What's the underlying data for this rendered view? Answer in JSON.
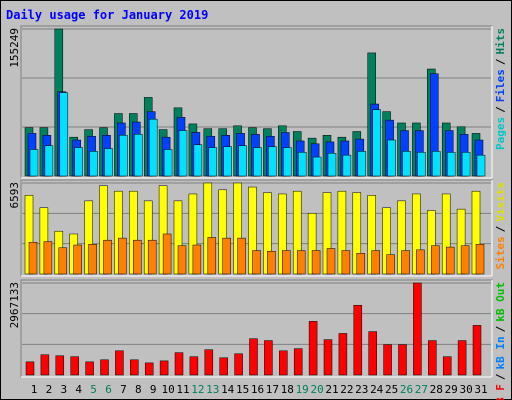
{
  "title": "Daily usage for January 2019",
  "chart_data": [
    {
      "type": "bar",
      "ylim": [
        0,
        155249
      ],
      "yticks": [
        155249
      ],
      "separator": "/",
      "series": [
        {
          "name": "Hits",
          "color": "#00805c",
          "values": [
            51000,
            51000,
            155249,
            41000,
            49000,
            51000,
            66000,
            66000,
            83000,
            49000,
            72000,
            55000,
            50000,
            50000,
            53000,
            51000,
            50000,
            53000,
            47000,
            40000,
            43000,
            41000,
            47000,
            130000,
            68000,
            56000,
            56000,
            113000,
            56000,
            52000,
            45000
          ]
        },
        {
          "name": "Files",
          "color": "#0040ff",
          "values": [
            45000,
            43000,
            89000,
            38000,
            42000,
            43000,
            56000,
            57000,
            68000,
            41000,
            62000,
            46000,
            42000,
            43000,
            45000,
            44000,
            42000,
            46000,
            37000,
            34000,
            36000,
            37000,
            39000,
            76000,
            59000,
            48000,
            48000,
            108000,
            48000,
            44000,
            38000
          ]
        },
        {
          "name": "Pages",
          "color": "#00e0ff",
          "values": [
            28000,
            32000,
            88000,
            30000,
            26000,
            29000,
            43000,
            44000,
            60000,
            28000,
            48000,
            33000,
            30000,
            31000,
            32000,
            30000,
            31000,
            30000,
            25000,
            20000,
            24000,
            22000,
            26000,
            70000,
            38000,
            26000,
            25000,
            26000,
            25000,
            25000,
            22000
          ]
        }
      ],
      "legend": [
        {
          "name": "Pages",
          "color": "#00c8c8"
        },
        {
          "name": "Files",
          "color": "#0040ff"
        },
        {
          "name": "Hits",
          "color": "#00805c"
        }
      ]
    },
    {
      "type": "bar",
      "ylim": [
        0,
        6593
      ],
      "yticks": [
        6593
      ],
      "separator": "/",
      "series": [
        {
          "name": "Visits",
          "color": "#ffff00",
          "values": [
            5700,
            4800,
            3100,
            2900,
            5300,
            6400,
            6000,
            6000,
            5300,
            6400,
            5300,
            5800,
            6593,
            6100,
            6593,
            6300,
            5900,
            5800,
            6000,
            4400,
            5900,
            6000,
            5900,
            5700,
            4800,
            5300,
            5800,
            4600,
            5800,
            4700,
            6000
          ]
        },
        {
          "name": "Sites",
          "color": "#ff8000",
          "values": [
            2300,
            2350,
            1900,
            2100,
            2150,
            2450,
            2600,
            2450,
            2450,
            2900,
            2050,
            2100,
            2650,
            2600,
            2600,
            1700,
            1650,
            1700,
            1700,
            1700,
            1850,
            1700,
            1500,
            1700,
            1400,
            1700,
            1750,
            2050,
            1950,
            2050,
            2150
          ]
        }
      ],
      "legend": [
        {
          "name": "Sites",
          "color": "#ff8000"
        },
        {
          "name": "Visits",
          "color": "#e0e000"
        }
      ]
    },
    {
      "type": "bar",
      "ylim": [
        0,
        2967133
      ],
      "yticks": [
        2967133
      ],
      "separator": "/",
      "categories": [
        "1",
        "2",
        "3",
        "4",
        "5",
        "6",
        "7",
        "8",
        "9",
        "10",
        "11",
        "12",
        "13",
        "14",
        "15",
        "16",
        "17",
        "18",
        "19",
        "20",
        "21",
        "22",
        "23",
        "24",
        "25",
        "26",
        "27",
        "28",
        "29",
        "30",
        "31"
      ],
      "category_colors": [
        "#000",
        "#000",
        "#000",
        "#000",
        "#00805c",
        "#00805c",
        "#000",
        "#000",
        "#000",
        "#000",
        "#000",
        "#00805c",
        "#00805c",
        "#000",
        "#000",
        "#000",
        "#000",
        "#000",
        "#00805c",
        "#00805c",
        "#000",
        "#000",
        "#000",
        "#000",
        "#000",
        "#00805c",
        "#00805c",
        "#000",
        "#000",
        "#000",
        "#000"
      ],
      "series": [
        {
          "name": "kB F",
          "color": "#ff0000",
          "values": [
            424000,
            652000,
            620000,
            590000,
            424000,
            490000,
            780000,
            490000,
            390000,
            455000,
            720000,
            590000,
            815000,
            555000,
            685000,
            1170000,
            1110000,
            780000,
            850000,
            1730000,
            1140000,
            1340000,
            2250000,
            1400000,
            980000,
            980000,
            2967133,
            1110000,
            590000,
            1110000,
            1600000
          ]
        }
      ],
      "legend": [
        {
          "name": "kB F",
          "color": "#ff0000"
        },
        {
          "name": "kB In",
          "color": "#0080ff"
        },
        {
          "name": "kB Out",
          "color": "#00c000"
        }
      ]
    }
  ]
}
